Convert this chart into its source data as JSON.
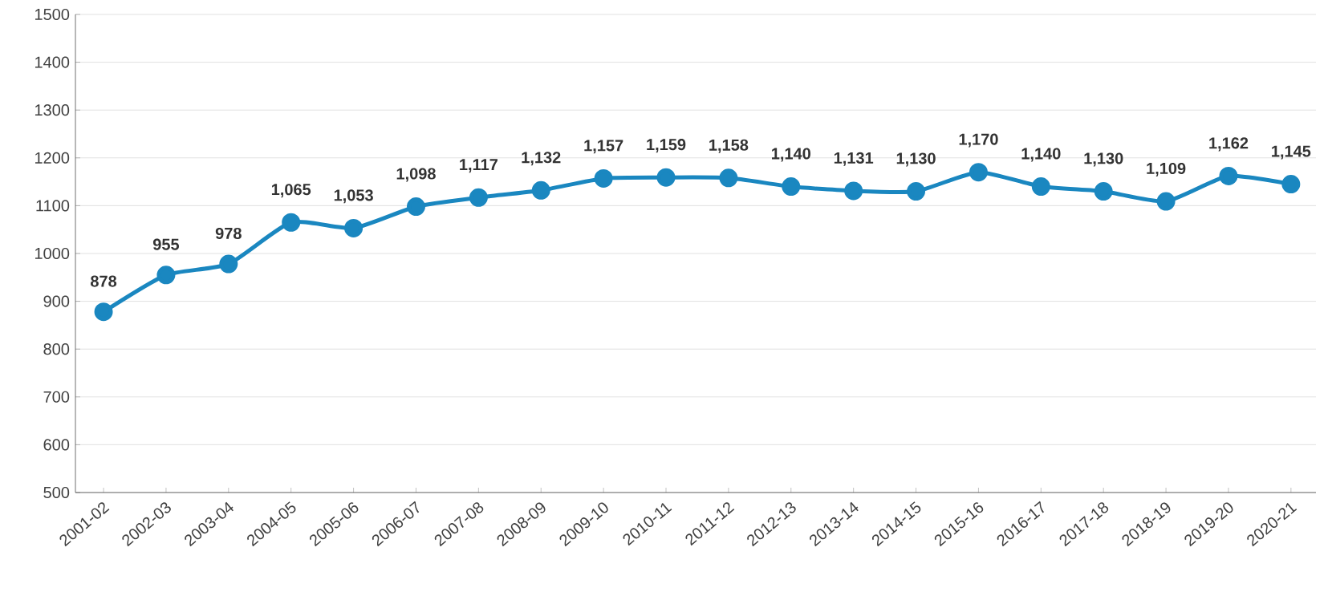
{
  "chart_data": {
    "type": "line",
    "categories": [
      "2001-02",
      "2002-03",
      "2003-04",
      "2004-05",
      "2005-06",
      "2006-07",
      "2007-08",
      "2008-09",
      "2009-10",
      "2010-11",
      "2011-12",
      "2012-13",
      "2013-14",
      "2014-15",
      "2015-16",
      "2016-17",
      "2017-18",
      "2018-19",
      "2019-20",
      "2020-21"
    ],
    "values": [
      878,
      955,
      978,
      1065,
      1053,
      1098,
      1117,
      1132,
      1157,
      1159,
      1158,
      1140,
      1131,
      1130,
      1170,
      1140,
      1130,
      1109,
      1162,
      1145
    ],
    "value_labels": [
      "878",
      "955",
      "978",
      "1,065",
      "1,053",
      "1,098",
      "1,117",
      "1,132",
      "1,157",
      "1,159",
      "1,158",
      "1,140",
      "1,131",
      "1,130",
      "1,170",
      "1,140",
      "1,130",
      "1,109",
      "1,162",
      "1,145"
    ],
    "color": "#1a87c0",
    "ylim": [
      500,
      1500
    ],
    "yticks": [
      500,
      600,
      700,
      800,
      900,
      1000,
      1100,
      1200,
      1300,
      1400,
      1500
    ],
    "grid": "y",
    "marker": "circle",
    "line_style": "solid"
  }
}
